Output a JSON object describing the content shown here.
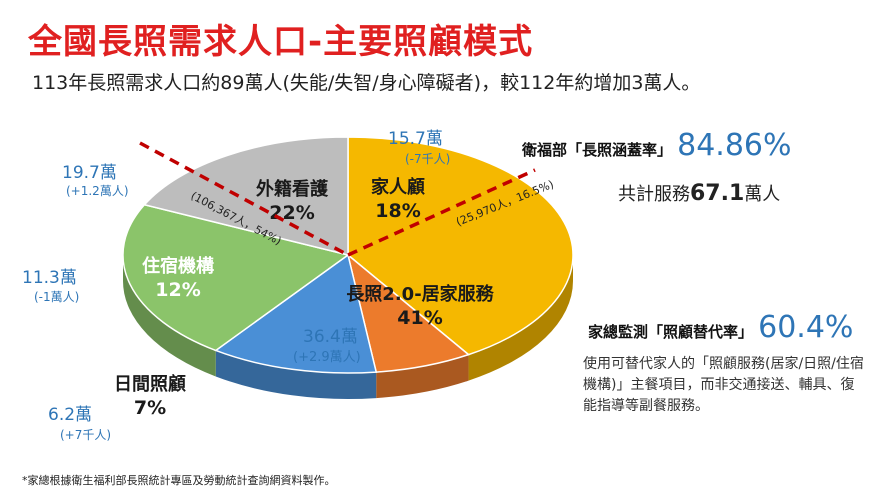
{
  "title": "全國長照需求人口-主要照顧模式",
  "subtitle": "113年長照需求人口約89萬人(失能/失智/身心障礙者)，較112年約增加3萬人。",
  "chart_data": {
    "type": "pie",
    "categories": [
      "長照2.0-居家服務",
      "日間照顧",
      "住宿機構",
      "外籍看護",
      "家人顧"
    ],
    "values": [
      41,
      7,
      12,
      22,
      18
    ],
    "value_labels": [
      "41%",
      "7%",
      "12%",
      "22%",
      "18%"
    ],
    "colors": [
      "#f5b800",
      "#ec7b2c",
      "#4a8fd6",
      "#8bc46a",
      "#bdbdbd"
    ],
    "population": [
      "36.4萬",
      "6.2萬",
      "11.3萬",
      "19.7萬",
      "15.7萬"
    ],
    "change": [
      "(+2.9萬人)",
      "(+7千人)",
      "(-1萬人)",
      "(+1.2萬人)",
      "(-7千人)"
    ],
    "annotations": {
      "foreign_care": "(106,367人，54%)",
      "family_care": "(25,970人，16.5%)"
    }
  },
  "coverage": {
    "label": "衛福部「長照涵蓋率」",
    "value": "84.86%"
  },
  "service": {
    "prefix": "共計服務",
    "number": "67.1",
    "suffix": "萬人"
  },
  "replacement": {
    "label": "家總監測「照顧替代率」",
    "value": "60.4%"
  },
  "description": "使用可替代家人的「照顧服務(居家/日照/住宿機構)」主餐項目，而非交通接送、輔具、復能指導等副餐服務。",
  "footnote": "*家總根據衛生福利部長照統計專區及勞動統計查詢網資料製作。"
}
